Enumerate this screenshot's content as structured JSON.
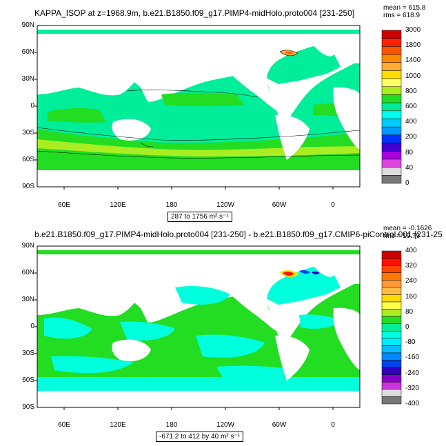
{
  "panels": [
    {
      "id": "top",
      "title": "KAPPA_ISOP at z=1968.9m, b.e21.B1850.f09_g17.PIMP4-midHolo.proto004 [231-250]",
      "stats": [
        "mean = 615.8",
        "rms = 618.9"
      ],
      "range_label": "287 to 1756 m² s⁻¹",
      "lat_ticks": [
        "90N",
        "60N",
        "30N",
        "0",
        "30S",
        "60S",
        "90S"
      ],
      "lon_ticks": [
        "60E",
        "120E",
        "180",
        "120W",
        "60W",
        "0"
      ],
      "colorbar_labels": [
        "3000",
        "1800",
        "1400",
        "1000",
        "800",
        "600",
        "400",
        "200",
        "80",
        "40",
        "0"
      ],
      "colorbar_colors": [
        "#cc0000",
        "#ff2200",
        "#ff5500",
        "#ff8800",
        "#ffaa33",
        "#ffdd00",
        "#ffff66",
        "#aaee22",
        "#22dd22",
        "#00ee99",
        "#00ffee",
        "#00ccff",
        "#0099ff",
        "#0033ff",
        "#4400cc",
        "#aa00dd",
        "#dd44dd",
        "#dddddd",
        "#777777"
      ],
      "ocean_fill": "#00ee99",
      "land_fill": "#ffffff"
    },
    {
      "id": "bottom",
      "title": "b.e21.B1850.f09_g17.PIMP4-midHolo.proto004 [231-250] - b.e21.B1850.f09_g17.CMIP6-piControl.001 [231-25",
      "stats": [
        "mean = -0.1626",
        "rms = 19.79"
      ],
      "range_label": "-671.2 to 412 by 40 m² s⁻¹",
      "lat_ticks": [
        "90N",
        "60N",
        "30N",
        "0",
        "30S",
        "60S",
        "90S"
      ],
      "lon_ticks": [
        "60E",
        "120E",
        "180",
        "120W",
        "60W",
        "0"
      ],
      "colorbar_labels": [
        "400",
        "320",
        "240",
        "160",
        "80",
        "0",
        "-80",
        "-160",
        "-240",
        "-320",
        "-400"
      ],
      "colorbar_colors": [
        "#cc0000",
        "#ff1100",
        "#ff4400",
        "#ff7700",
        "#ff9933",
        "#ffbb44",
        "#ffdd00",
        "#ffff44",
        "#aaee22",
        "#22dd22",
        "#00ee99",
        "#00ffdd",
        "#00eeff",
        "#00bbff",
        "#0088ff",
        "#0044ee",
        "#3300bb",
        "#8800cc",
        "#cc33dd",
        "#dddddd",
        "#777777"
      ],
      "ocean_fill": "#00ee99",
      "land_fill": "#ffffff"
    }
  ]
}
